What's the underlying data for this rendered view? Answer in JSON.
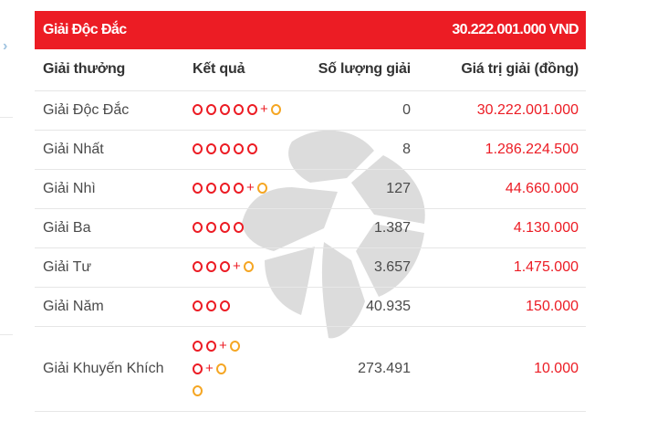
{
  "jackpot_bar": {
    "title": "Giải Độc Đắc",
    "amount": "30.222.001.000 VND"
  },
  "headers": {
    "prize": "Giải thưởng",
    "result": "Kết quả",
    "count": "Số lượng giải",
    "value": "Giá trị giải (đồng)"
  },
  "rows": [
    {
      "name": "Giải Độc Đắc",
      "count": "0",
      "value": "30.222.001.000"
    },
    {
      "name": "Giải Nhất",
      "count": "8",
      "value": "1.286.224.500"
    },
    {
      "name": "Giải Nhì",
      "count": "127",
      "value": "44.660.000"
    },
    {
      "name": "Giải Ba",
      "count": "1.387",
      "value": "4.130.000"
    },
    {
      "name": "Giải Tư",
      "count": "3.657",
      "value": "1.475.000"
    },
    {
      "name": "Giải Năm",
      "count": "40.935",
      "value": "150.000"
    },
    {
      "name": "Giải Khuyến Khích",
      "count": "273.491",
      "value": "10.000"
    }
  ],
  "results": [
    [
      [
        5,
        true
      ]
    ],
    [
      [
        5,
        false
      ]
    ],
    [
      [
        4,
        true
      ]
    ],
    [
      [
        4,
        false
      ]
    ],
    [
      [
        3,
        true
      ]
    ],
    [
      [
        3,
        false
      ]
    ],
    [
      [
        2,
        true
      ],
      [
        1,
        true
      ],
      [
        0,
        true
      ]
    ]
  ],
  "plus_symbol": "+",
  "colors": {
    "accent": "#ec1c24",
    "special_ball": "#f5a623",
    "watermark": "#d9d9d9"
  },
  "icons": {
    "left_nav": "chevron-right-icon",
    "background": "vietlott-star-watermark"
  }
}
